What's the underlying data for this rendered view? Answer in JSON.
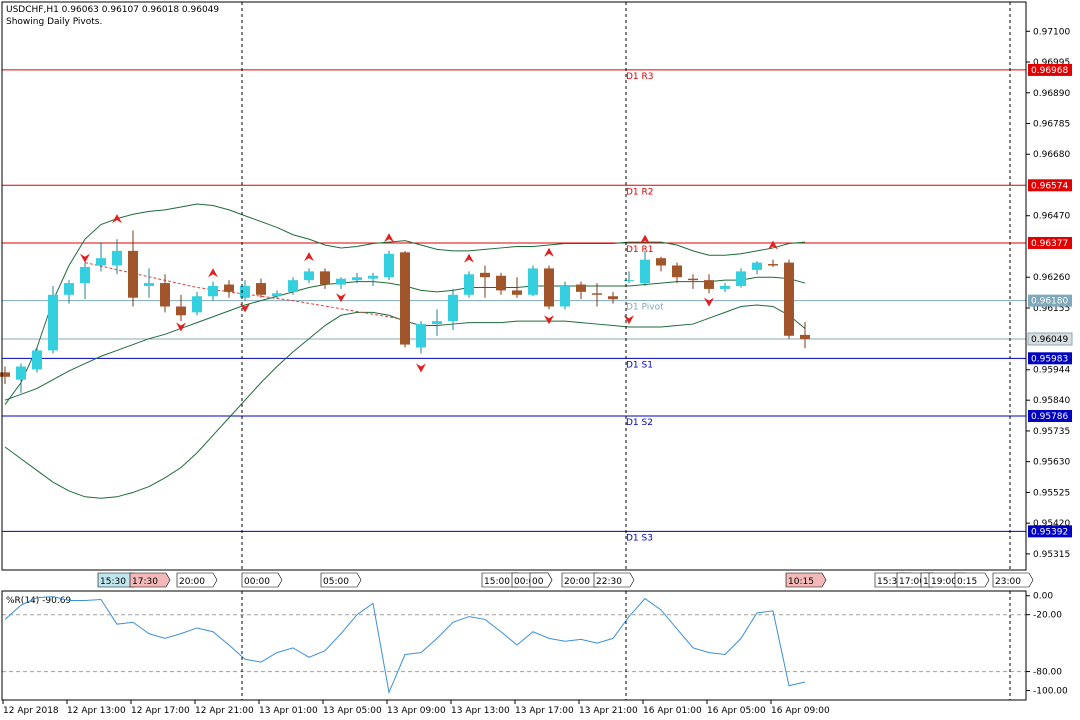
{
  "header": {
    "symbol_line": "USDCHF,H1  0.96063 0.96107 0.96018 0.96049",
    "pivot_note": "Showing Daily Pivots."
  },
  "colors": {
    "bull": "#35d0e0",
    "bear": "#a0552a",
    "resistance": "#e00000",
    "support": "#0000c0",
    "pivot": "#7fa8b8",
    "band": "#1e6b3a",
    "wpr": "#3c8fd8",
    "arrow": "#e02020"
  },
  "chart_data": [
    {
      "type": "candlestick",
      "symbol": "USDCHF",
      "timeframe": "H1",
      "ylim": [
        0.9526,
        0.972
      ],
      "y_ticks": [
        "0.97100",
        "0.96995",
        "0.96890",
        "0.96785",
        "0.96680",
        "0.96470",
        "0.96260",
        "0.96155",
        "0.95944",
        "0.95840",
        "0.95735",
        "0.95630",
        "0.95525",
        "0.95420",
        "0.95315"
      ],
      "last_price": "0.96049",
      "pivots": [
        {
          "label": "D1 R3",
          "value": 0.96968,
          "value_text": "0.96968",
          "kind": "resistance"
        },
        {
          "label": "D1 R2",
          "value": 0.96574,
          "value_text": "0.96574",
          "kind": "resistance"
        },
        {
          "label": "D1 R1",
          "value": 0.96377,
          "value_text": "0.96377",
          "kind": "resistance"
        },
        {
          "label": "D1 Pivot",
          "value": 0.9618,
          "value_text": "0.96180",
          "kind": "pivot"
        },
        {
          "label": "D1 S1",
          "value": 0.95983,
          "value_text": "0.95983",
          "kind": "support"
        },
        {
          "label": "D1 S2",
          "value": 0.95786,
          "value_text": "0.95786",
          "kind": "support"
        },
        {
          "label": "D1 S3",
          "value": 0.95392,
          "value_text": "0.95392",
          "kind": "support"
        }
      ],
      "candles": [
        {
          "o": 0.95935,
          "h": 0.95955,
          "l": 0.95895,
          "c": 0.9592
        },
        {
          "o": 0.9591,
          "h": 0.95965,
          "l": 0.95865,
          "c": 0.95955
        },
        {
          "o": 0.95945,
          "h": 0.9602,
          "l": 0.95935,
          "c": 0.9601
        },
        {
          "o": 0.9601,
          "h": 0.9623,
          "l": 0.96,
          "c": 0.962
        },
        {
          "o": 0.962,
          "h": 0.9625,
          "l": 0.9617,
          "c": 0.9624
        },
        {
          "o": 0.9624,
          "h": 0.9631,
          "l": 0.96185,
          "c": 0.96295
        },
        {
          "o": 0.963,
          "h": 0.9638,
          "l": 0.9628,
          "c": 0.96325
        },
        {
          "o": 0.963,
          "h": 0.9639,
          "l": 0.9627,
          "c": 0.9635
        },
        {
          "o": 0.9635,
          "h": 0.9642,
          "l": 0.9616,
          "c": 0.9619
        },
        {
          "o": 0.9623,
          "h": 0.9629,
          "l": 0.9619,
          "c": 0.9624
        },
        {
          "o": 0.9624,
          "h": 0.9627,
          "l": 0.9614,
          "c": 0.9616
        },
        {
          "o": 0.9616,
          "h": 0.962,
          "l": 0.9611,
          "c": 0.9613
        },
        {
          "o": 0.9614,
          "h": 0.9621,
          "l": 0.9613,
          "c": 0.96195
        },
        {
          "o": 0.96195,
          "h": 0.96245,
          "l": 0.9618,
          "c": 0.9623
        },
        {
          "o": 0.96235,
          "h": 0.9625,
          "l": 0.9619,
          "c": 0.9621
        },
        {
          "o": 0.9619,
          "h": 0.9625,
          "l": 0.9618,
          "c": 0.9623
        },
        {
          "o": 0.9624,
          "h": 0.96255,
          "l": 0.9619,
          "c": 0.962
        },
        {
          "o": 0.96195,
          "h": 0.96215,
          "l": 0.96185,
          "c": 0.96205
        },
        {
          "o": 0.9621,
          "h": 0.9626,
          "l": 0.962,
          "c": 0.9625
        },
        {
          "o": 0.9625,
          "h": 0.9629,
          "l": 0.9624,
          "c": 0.9628
        },
        {
          "o": 0.9628,
          "h": 0.9629,
          "l": 0.9622,
          "c": 0.96235
        },
        {
          "o": 0.96235,
          "h": 0.9626,
          "l": 0.9622,
          "c": 0.96255
        },
        {
          "o": 0.9625,
          "h": 0.96275,
          "l": 0.9624,
          "c": 0.9626
        },
        {
          "o": 0.96255,
          "h": 0.96275,
          "l": 0.9623,
          "c": 0.96265
        },
        {
          "o": 0.9626,
          "h": 0.9635,
          "l": 0.9625,
          "c": 0.9634
        },
        {
          "o": 0.96345,
          "h": 0.9635,
          "l": 0.9602,
          "c": 0.9603
        },
        {
          "o": 0.9602,
          "h": 0.9611,
          "l": 0.96,
          "c": 0.961
        },
        {
          "o": 0.961,
          "h": 0.9615,
          "l": 0.9606,
          "c": 0.9611
        },
        {
          "o": 0.9611,
          "h": 0.9622,
          "l": 0.9608,
          "c": 0.962
        },
        {
          "o": 0.962,
          "h": 0.9628,
          "l": 0.9619,
          "c": 0.9627
        },
        {
          "o": 0.96275,
          "h": 0.963,
          "l": 0.9619,
          "c": 0.9626
        },
        {
          "o": 0.96265,
          "h": 0.96275,
          "l": 0.962,
          "c": 0.96215
        },
        {
          "o": 0.96215,
          "h": 0.9626,
          "l": 0.9619,
          "c": 0.962
        },
        {
          "o": 0.962,
          "h": 0.963,
          "l": 0.96195,
          "c": 0.9629
        },
        {
          "o": 0.9629,
          "h": 0.963,
          "l": 0.9615,
          "c": 0.9616
        },
        {
          "o": 0.9616,
          "h": 0.96245,
          "l": 0.9615,
          "c": 0.9623
        },
        {
          "o": 0.96235,
          "h": 0.96245,
          "l": 0.96185,
          "c": 0.9621
        },
        {
          "o": 0.96205,
          "h": 0.9624,
          "l": 0.9616,
          "c": 0.962
        },
        {
          "o": 0.96195,
          "h": 0.9621,
          "l": 0.9617,
          "c": 0.96185
        },
        {
          "o": 0.9625,
          "h": 0.9628,
          "l": 0.9624,
          "c": 0.9625
        },
        {
          "o": 0.9624,
          "h": 0.9635,
          "l": 0.9623,
          "c": 0.9632
        },
        {
          "o": 0.96325,
          "h": 0.9633,
          "l": 0.9628,
          "c": 0.963
        },
        {
          "o": 0.963,
          "h": 0.9631,
          "l": 0.9624,
          "c": 0.9626
        },
        {
          "o": 0.96255,
          "h": 0.9627,
          "l": 0.9622,
          "c": 0.9625
        },
        {
          "o": 0.9625,
          "h": 0.9627,
          "l": 0.96205,
          "c": 0.9622
        },
        {
          "o": 0.9622,
          "h": 0.9624,
          "l": 0.9621,
          "c": 0.9623
        },
        {
          "o": 0.9623,
          "h": 0.9629,
          "l": 0.96225,
          "c": 0.9628
        },
        {
          "o": 0.96285,
          "h": 0.96315,
          "l": 0.9627,
          "c": 0.9631
        },
        {
          "o": 0.96305,
          "h": 0.9632,
          "l": 0.96295,
          "c": 0.963
        },
        {
          "o": 0.9631,
          "h": 0.9632,
          "l": 0.9605,
          "c": 0.9606
        },
        {
          "o": 0.96063,
          "h": 0.96107,
          "l": 0.96018,
          "c": 0.96049
        }
      ],
      "bands": {
        "upper": [
          0.95825,
          0.959,
          0.9602,
          0.9618,
          0.963,
          0.9639,
          0.9644,
          0.9646,
          0.96475,
          0.96485,
          0.9649,
          0.965,
          0.9651,
          0.96505,
          0.9649,
          0.9647,
          0.9645,
          0.9643,
          0.96405,
          0.9639,
          0.9637,
          0.9636,
          0.96365,
          0.96375,
          0.9638,
          0.96385,
          0.9637,
          0.96355,
          0.9635,
          0.9635,
          0.96355,
          0.9636,
          0.96365,
          0.96365,
          0.9637,
          0.96375,
          0.96375,
          0.96375,
          0.96375,
          0.9638,
          0.9638,
          0.9638,
          0.9637,
          0.9635,
          0.96335,
          0.96335,
          0.9634,
          0.9635,
          0.9636,
          0.96375,
          0.9638
        ],
        "middle": [
          0.9584,
          0.9586,
          0.9588,
          0.9591,
          0.9594,
          0.95965,
          0.9599,
          0.9601,
          0.9603,
          0.9605,
          0.96065,
          0.96085,
          0.96105,
          0.96125,
          0.96145,
          0.96165,
          0.9618,
          0.96195,
          0.9621,
          0.96225,
          0.96235,
          0.9624,
          0.96245,
          0.96245,
          0.9624,
          0.9623,
          0.96215,
          0.9621,
          0.96215,
          0.96225,
          0.96225,
          0.96225,
          0.96225,
          0.9623,
          0.9623,
          0.9623,
          0.9623,
          0.9623,
          0.9623,
          0.9623,
          0.96235,
          0.9624,
          0.96245,
          0.96245,
          0.96245,
          0.9625,
          0.9625,
          0.9626,
          0.9626,
          0.96255,
          0.9624
        ],
        "lower": [
          0.9568,
          0.9564,
          0.956,
          0.9556,
          0.9553,
          0.9551,
          0.95505,
          0.9551,
          0.95525,
          0.95545,
          0.95575,
          0.9561,
          0.9566,
          0.9572,
          0.9578,
          0.9584,
          0.959,
          0.95955,
          0.96005,
          0.9605,
          0.96095,
          0.9613,
          0.9614,
          0.9614,
          0.9613,
          0.9611,
          0.96095,
          0.96095,
          0.961,
          0.96105,
          0.96105,
          0.96105,
          0.9611,
          0.9611,
          0.9611,
          0.9611,
          0.96105,
          0.961,
          0.96095,
          0.9609,
          0.9609,
          0.9609,
          0.96095,
          0.961,
          0.9612,
          0.9614,
          0.9616,
          0.96165,
          0.9616,
          0.9613,
          0.96085
        ]
      },
      "signal_arrows": [
        {
          "i": 5,
          "dir": "down",
          "price": 0.9633
        },
        {
          "i": 7,
          "dir": "up",
          "price": 0.96455
        },
        {
          "i": 11,
          "dir": "down",
          "price": 0.96095
        },
        {
          "i": 13,
          "dir": "up",
          "price": 0.9627
        },
        {
          "i": 15,
          "dir": "down",
          "price": 0.9616
        },
        {
          "i": 19,
          "dir": "up",
          "price": 0.96325
        },
        {
          "i": 21,
          "dir": "down",
          "price": 0.96195
        },
        {
          "i": 24,
          "dir": "up",
          "price": 0.9639
        },
        {
          "i": 26,
          "dir": "down",
          "price": 0.95955
        },
        {
          "i": 29,
          "dir": "up",
          "price": 0.9632
        },
        {
          "i": 34,
          "dir": "up",
          "price": 0.9634
        },
        {
          "i": 34,
          "dir": "down",
          "price": 0.9612
        },
        {
          "i": 39,
          "dir": "down",
          "price": 0.9612
        },
        {
          "i": 40,
          "dir": "up",
          "price": 0.96385
        },
        {
          "i": 44,
          "dir": "down",
          "price": 0.9618
        },
        {
          "i": 48,
          "dir": "up",
          "price": 0.96365
        }
      ],
      "period_separators": [
        "13 Apr 2018",
        "16 Apr 2018"
      ],
      "time_badges": [
        {
          "label": "15:30",
          "color": "#bfe6ee"
        },
        {
          "label": "17:30",
          "color": "#f4b8b8"
        },
        {
          "label": "20:00",
          "color": "#ffffff"
        },
        {
          "label": "00:00",
          "color": "#ffffff"
        },
        {
          "label": "05:00",
          "color": "#ffffff"
        },
        {
          "label": "15:00",
          "color": "#ffffff"
        },
        {
          "label": "00:00",
          "color": "#ffffff"
        },
        {
          "label": "00",
          "color": "#ffffff"
        },
        {
          "label": "20:00",
          "color": "#ffffff"
        },
        {
          "label": "22:30",
          "color": "#ffffff"
        },
        {
          "label": "10:15",
          "color": "#f4b8b8"
        },
        {
          "label": "15:30",
          "color": "#ffffff"
        },
        {
          "label": "17:00",
          "color": "#ffffff"
        },
        {
          "label": "1",
          "color": "#ffffff"
        },
        {
          "label": "19:00",
          "color": "#ffffff"
        },
        {
          "label": "0:15",
          "color": "#ffffff"
        },
        {
          "label": "23:00",
          "color": "#ffffff"
        }
      ]
    },
    {
      "type": "line",
      "title": "%R(14) -90.69",
      "ylim": [
        -110,
        5
      ],
      "y_ticks": [
        {
          "value": 0,
          "label": "0.00"
        },
        {
          "value": -20,
          "label": "-20.00"
        },
        {
          "value": -80,
          "label": "-80.00"
        },
        {
          "value": -100,
          "label": "-100.00"
        }
      ],
      "levels": [
        -20,
        -80
      ],
      "values": [
        -25,
        -10,
        -2,
        -1,
        -5,
        -5,
        -4,
        -30,
        -28,
        -40,
        -45,
        -40,
        -34,
        -38,
        -52,
        -67,
        -70,
        -60,
        -55,
        -65,
        -58,
        -40,
        -20,
        -8,
        -102,
        -62,
        -60,
        -45,
        -28,
        -22,
        -25,
        -38,
        -52,
        -38,
        -45,
        -48,
        -46,
        -50,
        -45,
        -22,
        -3,
        -15,
        -35,
        -55,
        -60,
        -62,
        -45,
        -18,
        -16,
        -95,
        -91
      ]
    }
  ],
  "x_axis": {
    "labels": [
      "12 Apr 2018",
      "12 Apr 13:00",
      "12 Apr 17:00",
      "12 Apr 21:00",
      "13 Apr 01:00",
      "13 Apr 05:00",
      "13 Apr 09:00",
      "13 Apr 13:00",
      "13 Apr 17:00",
      "13 Apr 21:00",
      "16 Apr 01:00",
      "16 Apr 05:00",
      "16 Apr 09:00"
    ]
  }
}
